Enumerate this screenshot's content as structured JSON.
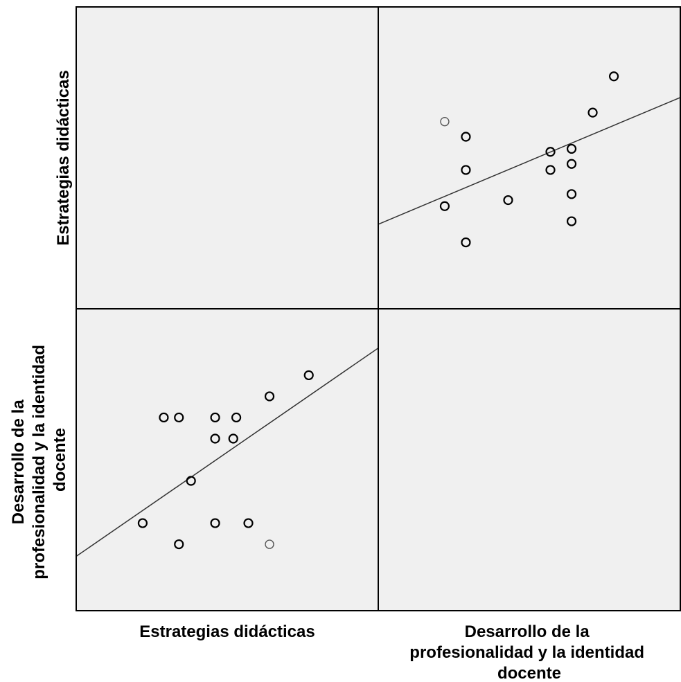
{
  "chart_data": {
    "type": "scatter",
    "matrix": "2x2 scatterplot matrix",
    "variables": [
      "Estrategias didácticas",
      "Desarrollo de la profesionalidad y la identidad docente"
    ],
    "row_labels": [
      [
        "Estrategias didácticas"
      ],
      [
        "Desarrollo de la",
        "profesionalidad y la identidad",
        "docente"
      ]
    ],
    "col_labels": [
      [
        "Estrategias didácticas"
      ],
      [
        "Desarrollo de la",
        "profesionalidad y la identidad",
        "docente"
      ]
    ],
    "xlim": [
      0,
      100
    ],
    "ylim": [
      0,
      100
    ],
    "grid": false,
    "fit_line": true,
    "colors": {
      "background": "#f0f0f0",
      "marker": "#000000",
      "marker_light": "#555555",
      "line": "#333333"
    },
    "series": [
      {
        "x_variable": "Desarrollo de la profesionalidad y la identidad docente",
        "y_variable": "Estrategias didácticas",
        "points": [
          {
            "x": 22,
            "y": 62
          },
          {
            "x": 29,
            "y": 57
          },
          {
            "x": 29,
            "y": 46
          },
          {
            "x": 22,
            "y": 34
          },
          {
            "x": 29,
            "y": 22
          },
          {
            "x": 43,
            "y": 36
          },
          {
            "x": 57,
            "y": 52
          },
          {
            "x": 57,
            "y": 46
          },
          {
            "x": 64,
            "y": 53
          },
          {
            "x": 64,
            "y": 48
          },
          {
            "x": 64,
            "y": 38
          },
          {
            "x": 64,
            "y": 29
          },
          {
            "x": 71,
            "y": 65
          },
          {
            "x": 78,
            "y": 77
          }
        ],
        "fit": {
          "x1": 0,
          "y1": 28,
          "x2": 100,
          "y2": 70
        }
      },
      {
        "x_variable": "Estrategias didácticas",
        "y_variable": "Desarrollo de la profesionalidad y la identidad docente",
        "points": [
          {
            "x": 22,
            "y": 29
          },
          {
            "x": 29,
            "y": 64
          },
          {
            "x": 34,
            "y": 64
          },
          {
            "x": 46,
            "y": 64
          },
          {
            "x": 53,
            "y": 64
          },
          {
            "x": 38,
            "y": 43
          },
          {
            "x": 46,
            "y": 57
          },
          {
            "x": 52,
            "y": 57
          },
          {
            "x": 34,
            "y": 22
          },
          {
            "x": 46,
            "y": 29
          },
          {
            "x": 57,
            "y": 29
          },
          {
            "x": 64,
            "y": 22
          },
          {
            "x": 64,
            "y": 71
          },
          {
            "x": 77,
            "y": 78
          }
        ],
        "fit": {
          "x1": 0,
          "y1": 18,
          "x2": 100,
          "y2": 87
        }
      }
    ]
  }
}
